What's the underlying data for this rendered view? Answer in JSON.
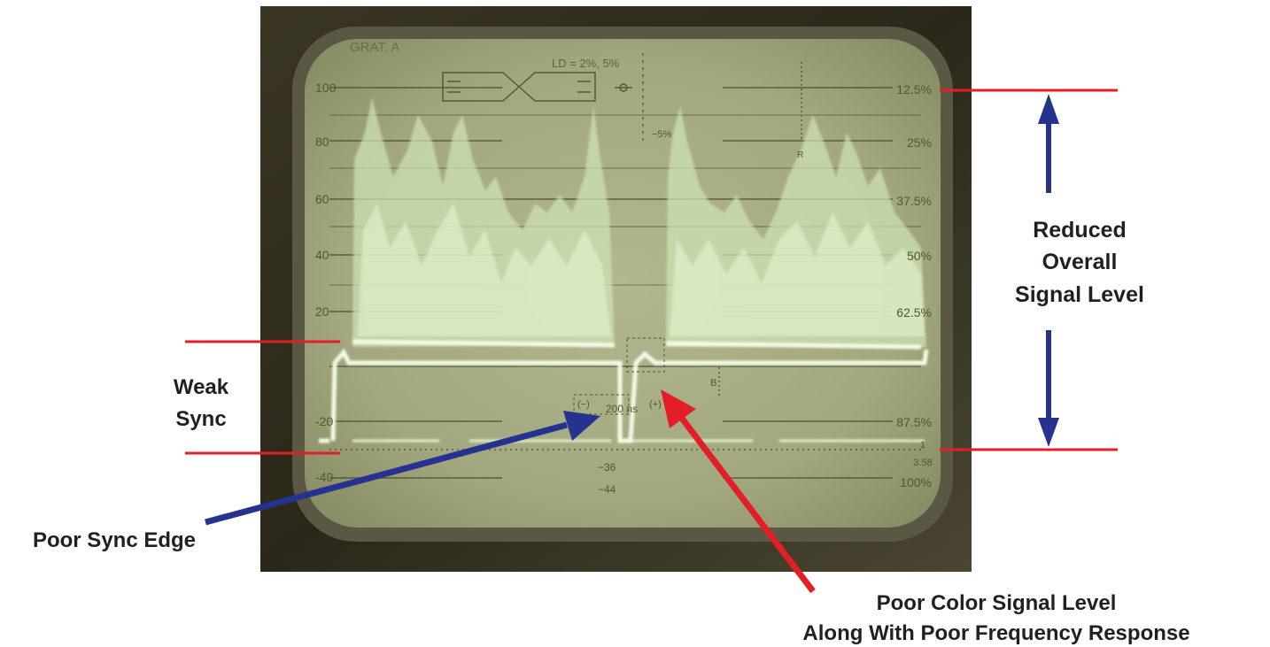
{
  "annotations": {
    "weak_sync": [
      "Weak",
      "Sync"
    ],
    "reduced_level": [
      "Reduced",
      "Overall",
      "Signal Level"
    ],
    "poor_sync_edge": "Poor Sync Edge",
    "poor_color": [
      "Poor Color Signal Level",
      "Along With Poor Frequency Response"
    ]
  },
  "screen": {
    "graticule": "GRAT. A",
    "ld_label": "LD = 2%, 5%",
    "ire_scale": [
      "100",
      "80",
      "60",
      "40",
      "20",
      "-20",
      "-40"
    ],
    "percent_scale": [
      "12.5%",
      "25%",
      "37.5%",
      "50%",
      "62.5%",
      "87.5%",
      "100%"
    ],
    "misc": {
      "five_pct": "−5%",
      "ns_label": "200 ns",
      "minus": "(−)",
      "plus": "(+)",
      "m36": "−36",
      "m44": "−44",
      "one": "1",
      "val_358": "3.58",
      "b": "B",
      "r": "R"
    }
  },
  "colors": {
    "arrow_red": "#e31e26",
    "arrow_blue": "#25338f",
    "text": "#231f20",
    "screen": "#a3a981",
    "trace": "#e9f5db"
  }
}
